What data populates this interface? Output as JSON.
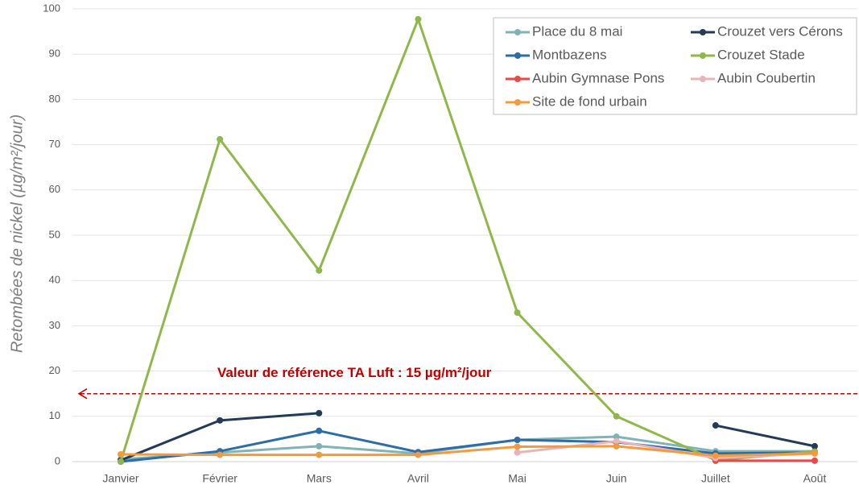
{
  "chart_data": {
    "type": "line",
    "y_label": "Retombées  de nickel (µg/m²/jour)",
    "categories": [
      "Janvier",
      "Février",
      "Mars",
      "Avril",
      "Mai",
      "Juin",
      "Juillet",
      "Août"
    ],
    "series": [
      {
        "name": "Place du 8 mai",
        "color": "#7fb3b5",
        "values": [
          0.5,
          2,
          3.4,
          1.8,
          4.8,
          5.5,
          2.3,
          2.3
        ]
      },
      {
        "name": "Crouzet vers Cérons",
        "color": "#243a55",
        "values": [
          0.3,
          9.1,
          10.7,
          null,
          null,
          null,
          8,
          3.4
        ]
      },
      {
        "name": "Montbazens",
        "color": "#2e6ca4",
        "values": [
          0,
          2.3,
          6.8,
          2.1,
          4.8,
          4.3,
          1.8,
          2
        ]
      },
      {
        "name": "Crouzet Stade",
        "color": "#8fb84a",
        "values": [
          0,
          71.2,
          42.2,
          97.7,
          32.9,
          10,
          0.3,
          2.2
        ]
      },
      {
        "name": "Aubin Gymnase Pons",
        "color": "#e84a4a",
        "values": [
          null,
          null,
          null,
          null,
          null,
          null,
          0.2,
          0.2
        ]
      },
      {
        "name": "Aubin Coubertin",
        "color": "#e8b4bc",
        "values": [
          null,
          null,
          null,
          null,
          2,
          4.5,
          0.8,
          1.8
        ]
      },
      {
        "name": "Site de fond urbain",
        "color": "#f39a3e",
        "values": [
          1.6,
          1.5,
          1.5,
          1.5,
          3.3,
          3.4,
          1.3,
          1.8
        ]
      }
    ],
    "ylim": [
      0,
      100
    ],
    "yticks": [
      0,
      10,
      20,
      30,
      40,
      50,
      60,
      70,
      80,
      90,
      100
    ],
    "grid": true,
    "reference_line": {
      "value": 15,
      "label": "Valeur de référence TA Luft : 15 µg/m²/jour",
      "color": "#c00000"
    },
    "legend": "upper right"
  }
}
